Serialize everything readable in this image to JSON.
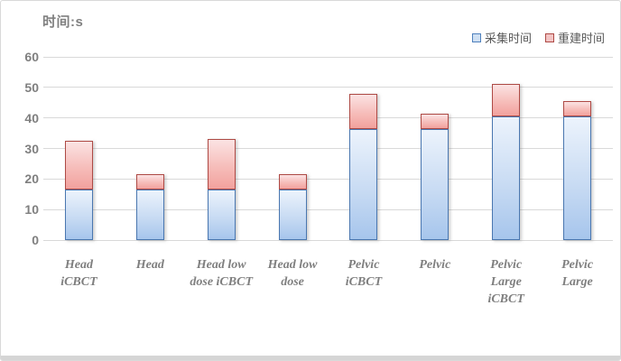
{
  "title": "时间:s",
  "legend": [
    {
      "label": "采集时间",
      "swatch_fill": "#CFE0F3",
      "swatch_border": "#4F81BD"
    },
    {
      "label": "重建时间",
      "swatch_fill": "#F2C4C4",
      "swatch_border": "#AE4A45"
    }
  ],
  "chart_data": {
    "type": "bar",
    "subtype": "stacked-vertical",
    "title": "时间:s",
    "ylabel": "时间:s",
    "xlabel": "",
    "categories": [
      "Head iCBCT",
      "Head",
      "Head low dose iCBCT",
      "Head low dose",
      "Pelvic iCBCT",
      "Pelvic",
      "Pelvic Large iCBCT",
      "Pelvic Large"
    ],
    "series": [
      {
        "name": "采集时间",
        "values": [
          16.5,
          16.5,
          16.5,
          16.5,
          36.5,
          36.5,
          40.5,
          40.5
        ],
        "border_color": "#4A77B0",
        "fill_top": "#ECF3FC",
        "fill_bottom": "#A6C5EC"
      },
      {
        "name": "重建时间",
        "values": [
          16,
          5,
          16.5,
          5,
          11.5,
          5,
          10.5,
          5
        ],
        "border_color": "#AE4A45",
        "fill_top": "#FBE3E3",
        "fill_bottom": "#F2A19D"
      }
    ],
    "stacked_totals": [
      32.5,
      21.5,
      33,
      21.5,
      48,
      41.5,
      51,
      45.5
    ],
    "ylim": [
      0,
      60
    ],
    "yticks": [
      0,
      10,
      20,
      30,
      40,
      50,
      60
    ],
    "grid": true,
    "gridline_color": "#D9D9D9",
    "legend_position": "top-right",
    "tick_label_color": "#7F7F7F",
    "category_label_color": "#7F7F7F",
    "legend_text_color": "#595959",
    "frame_border_color": "#D9D9D9",
    "bottom_strip_color": "#D5D5D5",
    "background_color": "#FFFFFF"
  }
}
